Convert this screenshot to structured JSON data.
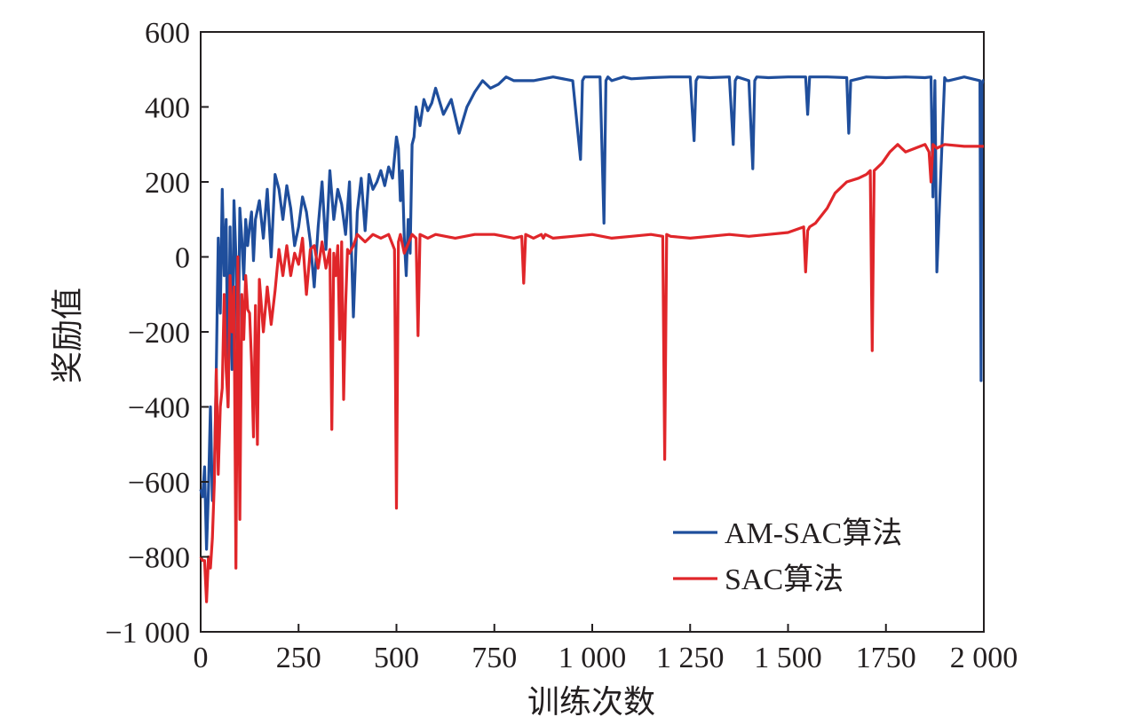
{
  "chart_data": {
    "type": "line",
    "xlabel": "训练次数",
    "ylabel": "奖励值",
    "xlim": [
      0,
      2000
    ],
    "ylim": [
      -1000,
      600
    ],
    "xticks": [
      0,
      250,
      500,
      750,
      1000,
      1250,
      1500,
      1750,
      2000
    ],
    "xtick_labels": [
      "0",
      "250",
      "500",
      "750",
      "1 000",
      "1 250",
      "1 500",
      "1750",
      "2 000"
    ],
    "yticks": [
      600,
      400,
      200,
      0,
      -200,
      -400,
      -600,
      -800,
      -1000
    ],
    "ytick_labels": [
      "600",
      "400",
      "200",
      "0",
      "−200",
      "−400",
      "−600",
      "−800",
      "−1 000"
    ],
    "grid": false,
    "legend_position": "bottom-right",
    "series": [
      {
        "name": "AM-SAC算法",
        "color": "#1f4e9c",
        "x": [
          0,
          5,
          10,
          15,
          20,
          25,
          30,
          35,
          40,
          45,
          50,
          55,
          60,
          65,
          70,
          75,
          80,
          85,
          90,
          95,
          100,
          105,
          110,
          115,
          120,
          125,
          130,
          135,
          140,
          150,
          160,
          170,
          180,
          190,
          200,
          210,
          220,
          230,
          240,
          250,
          260,
          270,
          280,
          290,
          300,
          310,
          320,
          330,
          340,
          350,
          360,
          370,
          380,
          390,
          400,
          410,
          420,
          430,
          440,
          450,
          460,
          470,
          480,
          490,
          500,
          505,
          510,
          515,
          520,
          525,
          530,
          535,
          540,
          545,
          550,
          560,
          570,
          580,
          590,
          600,
          620,
          640,
          660,
          680,
          700,
          720,
          740,
          760,
          780,
          800,
          850,
          900,
          950,
          970,
          975,
          980,
          1000,
          1020,
          1030,
          1035,
          1040,
          1050,
          1080,
          1100,
          1150,
          1200,
          1250,
          1260,
          1265,
          1270,
          1300,
          1350,
          1360,
          1365,
          1370,
          1400,
          1410,
          1415,
          1420,
          1450,
          1500,
          1545,
          1550,
          1555,
          1600,
          1650,
          1655,
          1660,
          1700,
          1750,
          1800,
          1850,
          1865,
          1870,
          1875,
          1880,
          1900,
          1905,
          1910,
          1950,
          1990,
          1993,
          1995,
          1998,
          2000
        ],
        "y": [
          -620,
          -640,
          -560,
          -780,
          -620,
          -400,
          -650,
          -580,
          -300,
          50,
          -150,
          180,
          -50,
          100,
          -400,
          80,
          -300,
          150,
          0,
          -330,
          130,
          50,
          -60,
          100,
          30,
          80,
          120,
          -10,
          100,
          150,
          50,
          180,
          0,
          220,
          180,
          100,
          190,
          130,
          30,
          80,
          160,
          120,
          40,
          -80,
          80,
          200,
          20,
          230,
          100,
          180,
          140,
          60,
          200,
          -160,
          120,
          210,
          70,
          220,
          180,
          200,
          230,
          190,
          240,
          210,
          320,
          290,
          150,
          230,
          50,
          -50,
          100,
          10,
          300,
          320,
          400,
          350,
          420,
          390,
          410,
          450,
          380,
          420,
          330,
          400,
          440,
          470,
          450,
          460,
          480,
          470,
          470,
          480,
          470,
          260,
          470,
          480,
          480,
          480,
          90,
          470,
          480,
          470,
          480,
          475,
          478,
          480,
          480,
          310,
          470,
          480,
          478,
          480,
          300,
          470,
          480,
          470,
          235,
          470,
          480,
          478,
          480,
          480,
          380,
          480,
          480,
          478,
          330,
          470,
          480,
          478,
          480,
          478,
          480,
          160,
          470,
          -40,
          478,
          470,
          470,
          480,
          470,
          -330,
          460,
          470,
          470
        ]
      },
      {
        "name": "SAC算法",
        "color": "#e0262a",
        "x": [
          0,
          5,
          10,
          15,
          20,
          25,
          30,
          35,
          40,
          45,
          50,
          55,
          60,
          65,
          70,
          75,
          80,
          85,
          90,
          95,
          100,
          105,
          110,
          115,
          120,
          125,
          130,
          135,
          140,
          145,
          150,
          160,
          170,
          180,
          190,
          200,
          210,
          220,
          230,
          240,
          250,
          260,
          270,
          280,
          290,
          300,
          310,
          320,
          330,
          335,
          340,
          345,
          350,
          355,
          360,
          365,
          370,
          375,
          380,
          390,
          400,
          420,
          440,
          460,
          480,
          495,
          500,
          505,
          510,
          520,
          540,
          550,
          555,
          560,
          580,
          600,
          650,
          700,
          750,
          800,
          820,
          825,
          830,
          850,
          870,
          875,
          880,
          900,
          950,
          1000,
          1050,
          1100,
          1150,
          1180,
          1185,
          1190,
          1200,
          1250,
          1300,
          1350,
          1400,
          1450,
          1500,
          1540,
          1545,
          1550,
          1555,
          1570,
          1600,
          1620,
          1650,
          1680,
          1700,
          1710,
          1715,
          1720,
          1740,
          1760,
          1770,
          1780,
          1800,
          1850,
          1860,
          1865,
          1870,
          1880,
          1900,
          1950,
          2000
        ],
        "y": [
          -800,
          -810,
          -810,
          -920,
          -800,
          -830,
          -750,
          -600,
          -300,
          -580,
          -400,
          -350,
          -100,
          -300,
          -400,
          -50,
          -200,
          -80,
          -830,
          0,
          -700,
          -100,
          -220,
          -50,
          -140,
          -150,
          -280,
          -480,
          -130,
          -500,
          -60,
          -200,
          -80,
          -180,
          -90,
          20,
          -50,
          30,
          -50,
          10,
          -20,
          50,
          -100,
          20,
          30,
          -30,
          40,
          -30,
          20,
          -460,
          10,
          -50,
          30,
          -220,
          40,
          -380,
          -130,
          20,
          10,
          30,
          60,
          40,
          60,
          50,
          60,
          20,
          -670,
          40,
          60,
          10,
          60,
          50,
          -210,
          60,
          50,
          60,
          50,
          60,
          60,
          50,
          55,
          -70,
          60,
          50,
          60,
          50,
          60,
          50,
          55,
          60,
          50,
          55,
          60,
          55,
          -540,
          60,
          55,
          50,
          55,
          60,
          55,
          60,
          65,
          80,
          -40,
          70,
          80,
          90,
          130,
          170,
          200,
          210,
          220,
          230,
          -250,
          230,
          250,
          280,
          290,
          300,
          280,
          300,
          280,
          200,
          300,
          290,
          300,
          295,
          295
        ]
      }
    ]
  }
}
